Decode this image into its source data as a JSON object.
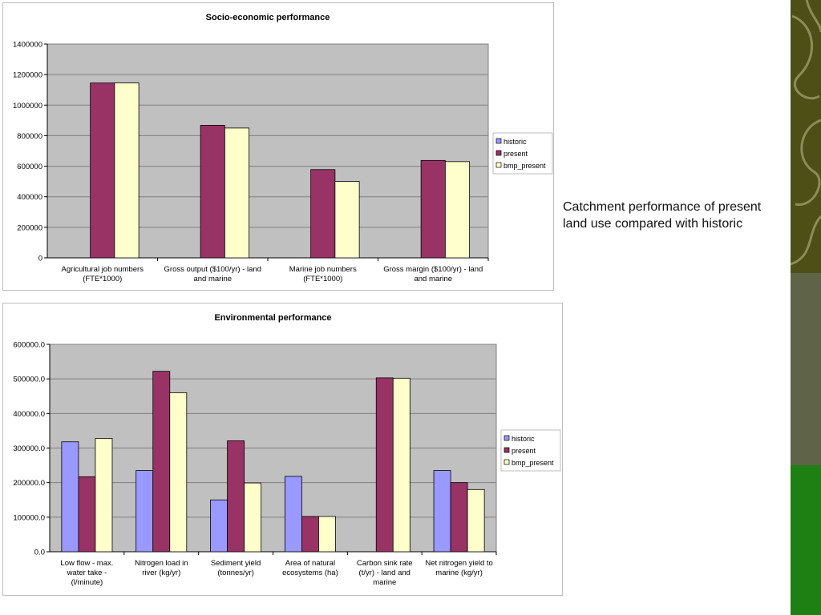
{
  "slide": {
    "caption": "Catchment performance of present land use compared with historic",
    "colors": {
      "band_top": "#4e4f17",
      "band_mid": "#5f6449",
      "band_bottom": "#1e7f12",
      "swirl": "#8c8c5a"
    }
  },
  "chart_data": [
    {
      "type": "bar",
      "title": "Socio-economic performance",
      "categories": [
        [
          "Agricultural job numbers",
          "(FTE*1000)"
        ],
        [
          "Gross output ($100/yr) - land",
          "and marine"
        ],
        [
          "Marine job numbers",
          "(FTE*1000)"
        ],
        [
          "Gross margin ($100/yr) - land",
          "and marine"
        ]
      ],
      "series": [
        {
          "name": "historic",
          "color": "#9999ff",
          "values": [
            0,
            0,
            0,
            0
          ]
        },
        {
          "name": "present",
          "color": "#993366",
          "values": [
            1145000,
            868000,
            578000,
            638000
          ]
        },
        {
          "name": "bmp_present",
          "color": "#ffffcc",
          "values": [
            1145000,
            850000,
            500000,
            630000
          ]
        }
      ],
      "yticks": [
        "0",
        "200000",
        "400000",
        "600000",
        "800000",
        "1000000",
        "1200000",
        "1400000"
      ],
      "ylim": [
        0,
        1400000
      ],
      "grid": true,
      "plot_bg": "#c0c0c0",
      "legend": "right"
    },
    {
      "type": "bar",
      "title": "Environmental performance",
      "categories": [
        [
          "Low flow - max.",
          "water take -",
          "(l/minute)"
        ],
        [
          "Nitrogen load in",
          "river (kg/yr)"
        ],
        [
          "Sediment yield",
          "(tonnes/yr)"
        ],
        [
          "Area of natural",
          "ecosystems (ha)"
        ],
        [
          "Carbon sink rate",
          "(t/yr) - land and",
          "marine"
        ],
        [
          "Net nitrogen yield to",
          "marine (kg/yr)"
        ]
      ],
      "series": [
        {
          "name": "historic",
          "color": "#9999ff",
          "values": [
            318000,
            235000,
            150000,
            218000,
            0,
            235000
          ]
        },
        {
          "name": "present",
          "color": "#993366",
          "values": [
            217000,
            522000,
            321000,
            102000,
            503000,
            200000
          ]
        },
        {
          "name": "bmp_present",
          "color": "#ffffcc",
          "values": [
            328000,
            460000,
            199000,
            102000,
            502000,
            180000
          ]
        }
      ],
      "yticks": [
        "0.0",
        "100000.0",
        "200000.0",
        "300000.0",
        "400000.0",
        "500000.0",
        "600000.0"
      ],
      "ylim": [
        0,
        600000
      ],
      "grid": true,
      "plot_bg": "#c0c0c0",
      "legend": "right"
    }
  ]
}
